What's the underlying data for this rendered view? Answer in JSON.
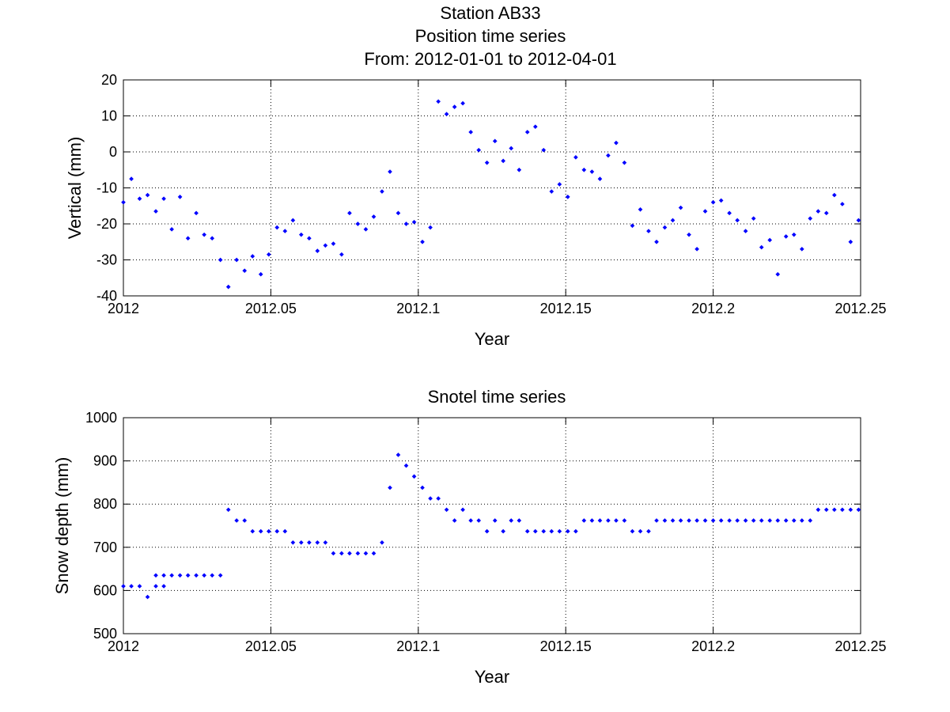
{
  "figure": {
    "title_lines": [
      "Station AB33",
      "Position time series",
      "From: 2012-01-01 to 2012-04-01"
    ],
    "marker_color": "#0000ff",
    "grid_color": "#000000"
  },
  "chart_data": [
    {
      "type": "scatter",
      "title": "",
      "xlabel": "Year",
      "ylabel": "Vertical (mm)",
      "xlim": [
        2012,
        2012.25
      ],
      "ylim": [
        -40,
        20
      ],
      "grid": true,
      "x_ticks": [
        2012,
        2012.05,
        2012.1,
        2012.15,
        2012.2,
        2012.25
      ],
      "x_tick_labels": [
        "2012",
        "2012.05",
        "2012.1",
        "2012.15",
        "2012.2",
        "2012.25"
      ],
      "y_ticks": [
        20,
        10,
        0,
        -10,
        -20,
        -30,
        -40
      ],
      "y_tick_labels": [
        "20",
        "10",
        "0",
        "-10",
        "-20",
        "-30",
        "-40"
      ],
      "series": [
        {
          "x": [
            2012.0,
            2012.0027,
            2012.0055,
            2012.0082,
            2012.011,
            2012.0137,
            2012.0164,
            2012.0192,
            2012.0219,
            2012.0247,
            2012.0274,
            2012.0301,
            2012.0329,
            2012.0356,
            2012.0384,
            2012.0411,
            2012.0438,
            2012.0466,
            2012.0493,
            2012.0521,
            2012.0548,
            2012.0575,
            2012.0603,
            2012.063,
            2012.0658,
            2012.0685,
            2012.0712,
            2012.074,
            2012.0767,
            2012.0795,
            2012.0822,
            2012.0849,
            2012.0877,
            2012.0904,
            2012.0932,
            2012.0959,
            2012.0986,
            2012.1014,
            2012.1041,
            2012.1068,
            2012.1096,
            2012.1123,
            2012.1151,
            2012.1178,
            2012.1205,
            2012.1233,
            2012.126,
            2012.1288,
            2012.1315,
            2012.1342,
            2012.137,
            2012.1397,
            2012.1425,
            2012.1452,
            2012.1479,
            2012.1507,
            2012.1534,
            2012.1562,
            2012.1589,
            2012.1616,
            2012.1644,
            2012.1671,
            2012.1699,
            2012.1726,
            2012.1753,
            2012.1781,
            2012.1808,
            2012.1836,
            2012.1863,
            2012.189,
            2012.1918,
            2012.1945,
            2012.1973,
            2012.2,
            2012.2027,
            2012.2055,
            2012.2082,
            2012.211,
            2012.2137,
            2012.2164,
            2012.2192,
            2012.2219,
            2012.2247,
            2012.2274,
            2012.2301,
            2012.2329,
            2012.2356,
            2012.2384,
            2012.2411,
            2012.2438,
            2012.2466,
            2012.2493
          ],
          "y": [
            -14,
            -7.5,
            -13,
            -12,
            -16.5,
            -13,
            -21.5,
            -12.5,
            -24,
            -17,
            -23,
            -24,
            -30,
            -37.5,
            -30,
            -33,
            -29,
            -34,
            -28.5,
            -21,
            -22,
            -19,
            -23,
            -24,
            -27.5,
            -26,
            -25.5,
            -28.5,
            -17,
            -20,
            -21.5,
            -18,
            -11,
            -5.5,
            -17,
            -20,
            -19.5,
            -25,
            -21,
            14,
            10.5,
            12.5,
            13.5,
            5.5,
            0.5,
            -3,
            3,
            -2.5,
            1,
            -5,
            5.5,
            7,
            0.5,
            -11,
            -9,
            -12.5,
            -1.5,
            -5,
            -5.5,
            -7.5,
            -1,
            2.5,
            -3,
            -20.5,
            -16,
            -22,
            -25,
            -21,
            -19,
            -15.5,
            -23,
            -27,
            -16.5,
            -14,
            -13.5,
            -17,
            -19,
            -22,
            -18.5,
            -26.5,
            -24.5,
            -34,
            -23.5,
            -23,
            -27,
            -18.5,
            -16.5,
            -17,
            -12,
            -14.5,
            -25,
            -19
          ]
        }
      ]
    },
    {
      "type": "scatter",
      "title": "Snotel time series",
      "xlabel": "Year",
      "ylabel": "Snow depth (mm)",
      "xlim": [
        2012,
        2012.25
      ],
      "ylim": [
        500,
        1000
      ],
      "grid": true,
      "x_ticks": [
        2012,
        2012.05,
        2012.1,
        2012.15,
        2012.2,
        2012.25
      ],
      "x_tick_labels": [
        "2012",
        "2012.05",
        "2012.1",
        "2012.15",
        "2012.2",
        "2012.25"
      ],
      "y_ticks": [
        1000,
        900,
        800,
        700,
        600,
        500
      ],
      "y_tick_labels": [
        "1000",
        "900",
        "800",
        "700",
        "600",
        "500"
      ],
      "series": [
        {
          "x": [
            2012.0,
            2012.0027,
            2012.0055,
            2012.0082,
            2012.011,
            2012.011,
            2012.0137,
            2012.0137,
            2012.0164,
            2012.0192,
            2012.0219,
            2012.0247,
            2012.0274,
            2012.0301,
            2012.0329,
            2012.0356,
            2012.0384,
            2012.0411,
            2012.0438,
            2012.0466,
            2012.0493,
            2012.0521,
            2012.0548,
            2012.0575,
            2012.0603,
            2012.063,
            2012.0658,
            2012.0685,
            2012.0712,
            2012.074,
            2012.0767,
            2012.0795,
            2012.0822,
            2012.0849,
            2012.0877,
            2012.0904,
            2012.0932,
            2012.0959,
            2012.0986,
            2012.1014,
            2012.1041,
            2012.1068,
            2012.1096,
            2012.1123,
            2012.1151,
            2012.1178,
            2012.1205,
            2012.1233,
            2012.126,
            2012.1288,
            2012.1315,
            2012.1342,
            2012.137,
            2012.1397,
            2012.1425,
            2012.1452,
            2012.1479,
            2012.1507,
            2012.1534,
            2012.1562,
            2012.1589,
            2012.1616,
            2012.1644,
            2012.1671,
            2012.1699,
            2012.1726,
            2012.1753,
            2012.1781,
            2012.1808,
            2012.1836,
            2012.1863,
            2012.189,
            2012.1918,
            2012.1945,
            2012.1973,
            2012.2,
            2012.2027,
            2012.2055,
            2012.2082,
            2012.211,
            2012.2137,
            2012.2164,
            2012.2192,
            2012.2219,
            2012.2247,
            2012.2274,
            2012.2301,
            2012.2329,
            2012.2356,
            2012.2384,
            2012.2411,
            2012.2438,
            2012.2466,
            2012.2493
          ],
          "y": [
            610,
            610,
            610,
            585,
            635,
            610,
            635,
            610,
            635,
            635,
            635,
            635,
            635,
            635,
            635,
            787,
            762,
            762,
            737,
            737,
            737,
            737,
            737,
            711,
            711,
            711,
            711,
            711,
            686,
            686,
            686,
            686,
            686,
            686,
            711,
            838,
            914,
            889,
            864,
            838,
            813,
            813,
            787,
            762,
            787,
            762,
            762,
            737,
            762,
            737,
            762,
            762,
            737,
            737,
            737,
            737,
            737,
            737,
            737,
            762,
            762,
            762,
            762,
            762,
            762,
            737,
            737,
            737,
            762,
            762,
            762,
            762,
            762,
            762,
            762,
            762,
            762,
            762,
            762,
            762,
            762,
            762,
            762,
            762,
            762,
            762,
            762,
            762,
            787,
            787,
            787,
            787,
            787,
            787
          ]
        }
      ]
    }
  ]
}
